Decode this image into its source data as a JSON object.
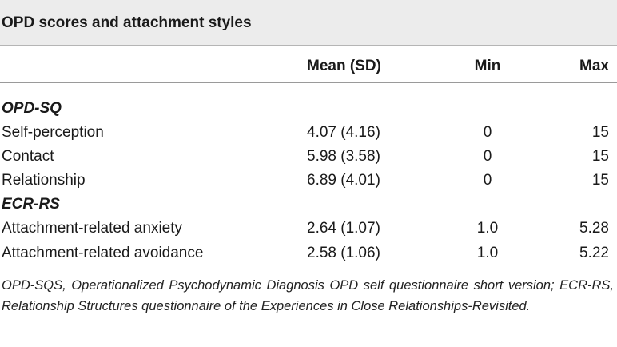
{
  "title": "OPD scores and attachment styles",
  "columns": {
    "label": "",
    "mean": "Mean (SD)",
    "min": "Min",
    "max": "Max"
  },
  "rows": [
    {
      "type": "section",
      "label": "OPD-SQ"
    },
    {
      "type": "data",
      "label": "Self-perception",
      "mean": "4.07 (4.16)",
      "min": "0",
      "max": "15"
    },
    {
      "type": "data",
      "label": "Contact",
      "mean": "5.98 (3.58)",
      "min": "0",
      "max": "15"
    },
    {
      "type": "data",
      "label": "Relationship",
      "mean": "6.89 (4.01)",
      "min": "0",
      "max": "15"
    },
    {
      "type": "section",
      "label": "ECR-RS"
    },
    {
      "type": "data",
      "label": "Attachment-related anxiety",
      "mean": "2.64 (1.07)",
      "min": "1.0",
      "max": "5.28"
    },
    {
      "type": "data",
      "label": "Attachment-related avoidance",
      "mean": "2.58 (1.06)",
      "min": "1.0",
      "max": "5.22"
    }
  ],
  "footnote": "OPD-SQS, Operationalized Psychodynamic Diagnosis OPD self questionnaire short version; ECR-RS, Relationship Structures questionnaire of the Experiences in Close Relationships-Revisited."
}
